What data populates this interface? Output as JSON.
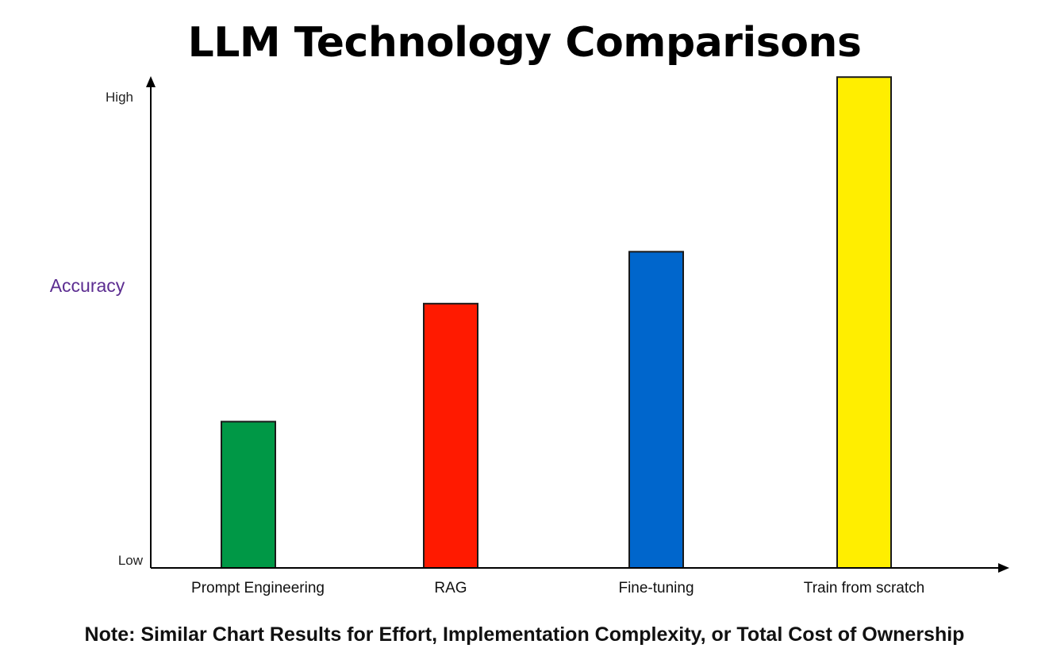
{
  "chart_data": {
    "type": "bar",
    "title": "LLM Technology Comparisons",
    "ylabel": "Accuracy",
    "y_tick_labels": {
      "low": "Low",
      "high": "High"
    },
    "ylim": [
      0,
      100
    ],
    "categories": [
      "Prompt Engineering",
      "RAG",
      "Fine-tuning",
      "Train from scratch"
    ],
    "values": [
      31,
      56,
      67,
      104
    ],
    "colors": [
      "#009846",
      "#ff1a00",
      "#0066cc",
      "#ffee00"
    ],
    "bar_outline_color": "#1a1a1a",
    "axis_color": "#000000",
    "ylabel_color": "#5c2d91",
    "grid": false,
    "legend": "none"
  },
  "footnote": "Note: Similar Chart Results for Effort, Implementation Complexity, or Total Cost of Ownership"
}
